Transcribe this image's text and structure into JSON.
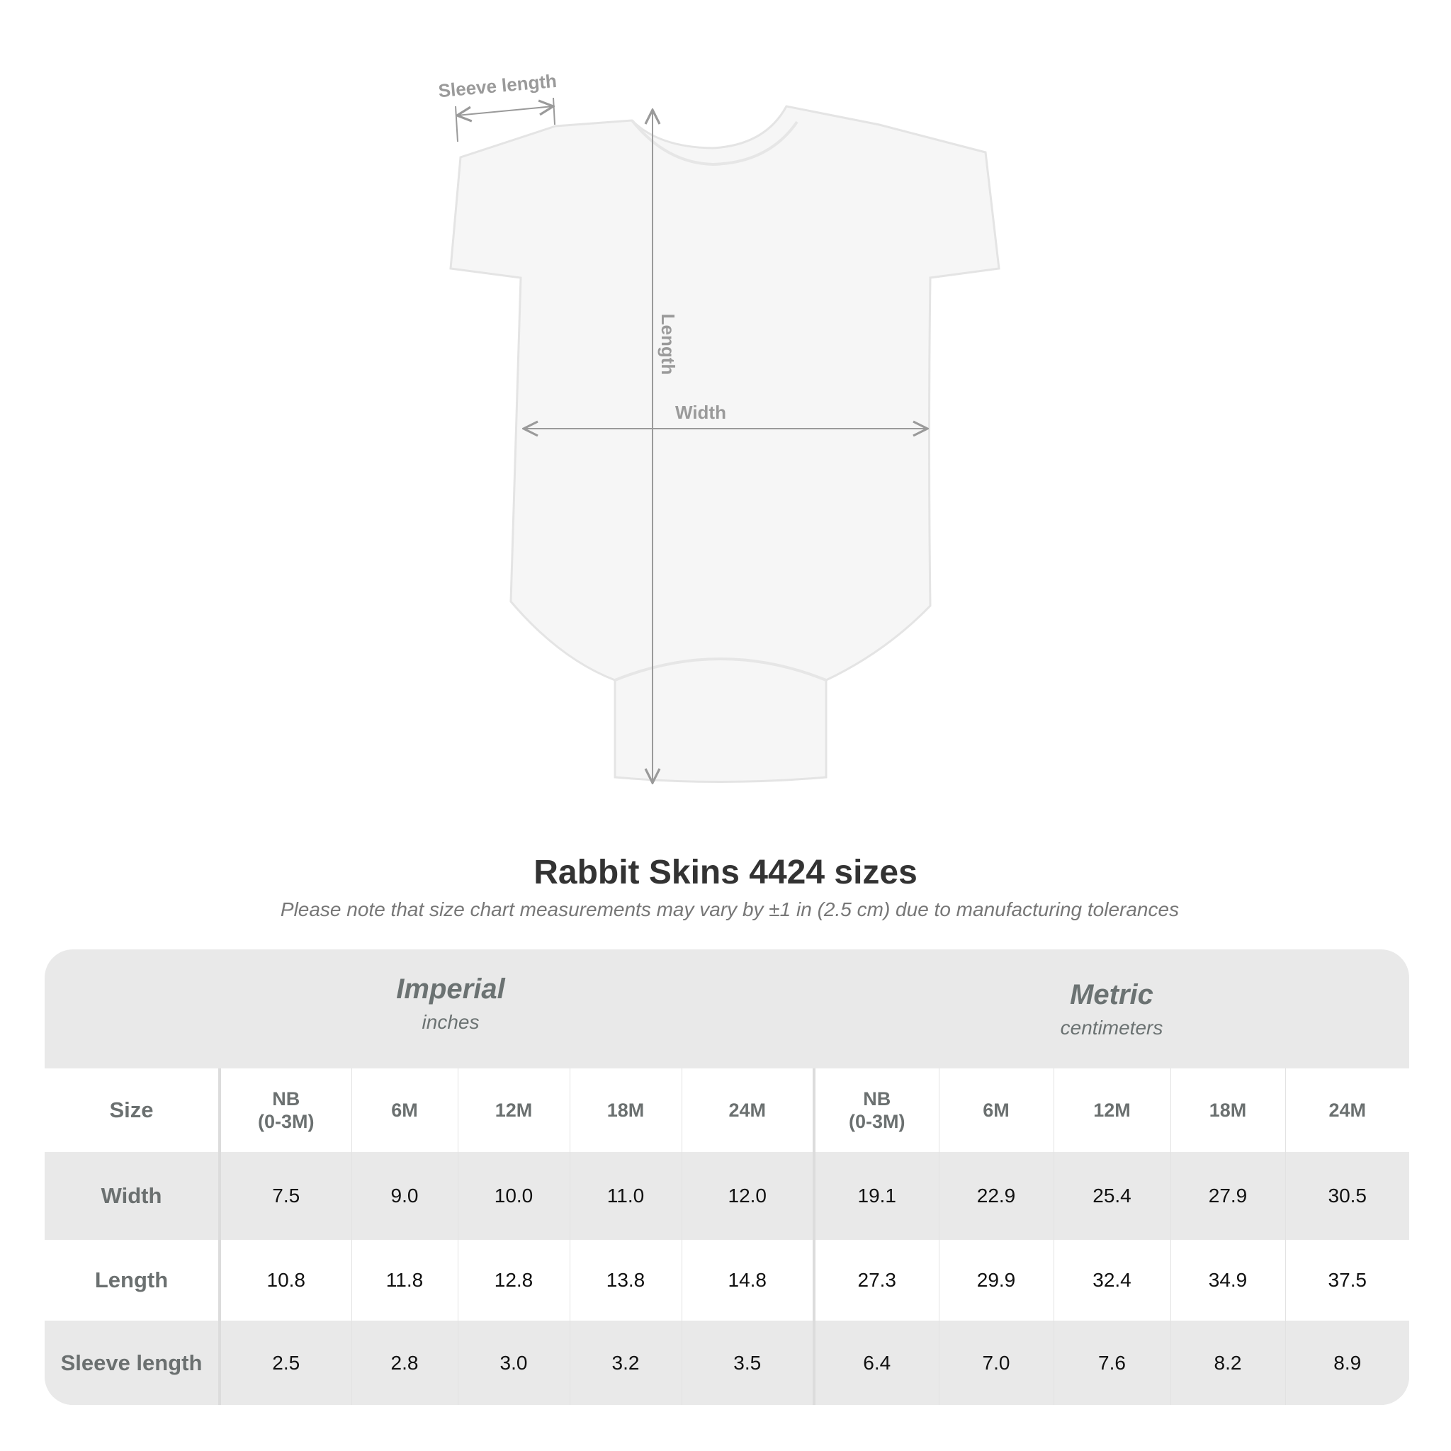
{
  "diagram": {
    "labels": {
      "sleeve": "Sleeve length",
      "length": "Length",
      "width": "Width"
    },
    "colors": {
      "garment": "#f6f6f6",
      "measure": "#9a9a9a"
    }
  },
  "title": "Rabbit Skins 4424 sizes",
  "subtitle": "Please note that size chart measurements may vary by ±1 in (2.5 cm) due to manufacturing tolerances",
  "table": {
    "imperial": {
      "name": "Imperial",
      "unit": "inches"
    },
    "metric": {
      "name": "Metric",
      "unit": "centimeters"
    },
    "size_label": "Size",
    "sizes": [
      [
        "NB",
        "(0-3M)"
      ],
      [
        "6M",
        ""
      ],
      [
        "12M",
        ""
      ],
      [
        "18M",
        ""
      ],
      [
        "24M",
        ""
      ]
    ],
    "rows": [
      {
        "label": "Width",
        "imperial": [
          "7.5",
          "9.0",
          "10.0",
          "11.0",
          "12.0"
        ],
        "metric": [
          "19.1",
          "22.9",
          "25.4",
          "27.9",
          "30.5"
        ]
      },
      {
        "label": "Length",
        "imperial": [
          "10.8",
          "11.8",
          "12.8",
          "13.8",
          "14.8"
        ],
        "metric": [
          "27.3",
          "29.9",
          "32.4",
          "34.9",
          "37.5"
        ]
      },
      {
        "label": "Sleeve length",
        "imperial": [
          "2.5",
          "2.8",
          "3.0",
          "3.2",
          "3.5"
        ],
        "metric": [
          "6.4",
          "7.0",
          "7.6",
          "8.2",
          "8.9"
        ]
      }
    ]
  }
}
